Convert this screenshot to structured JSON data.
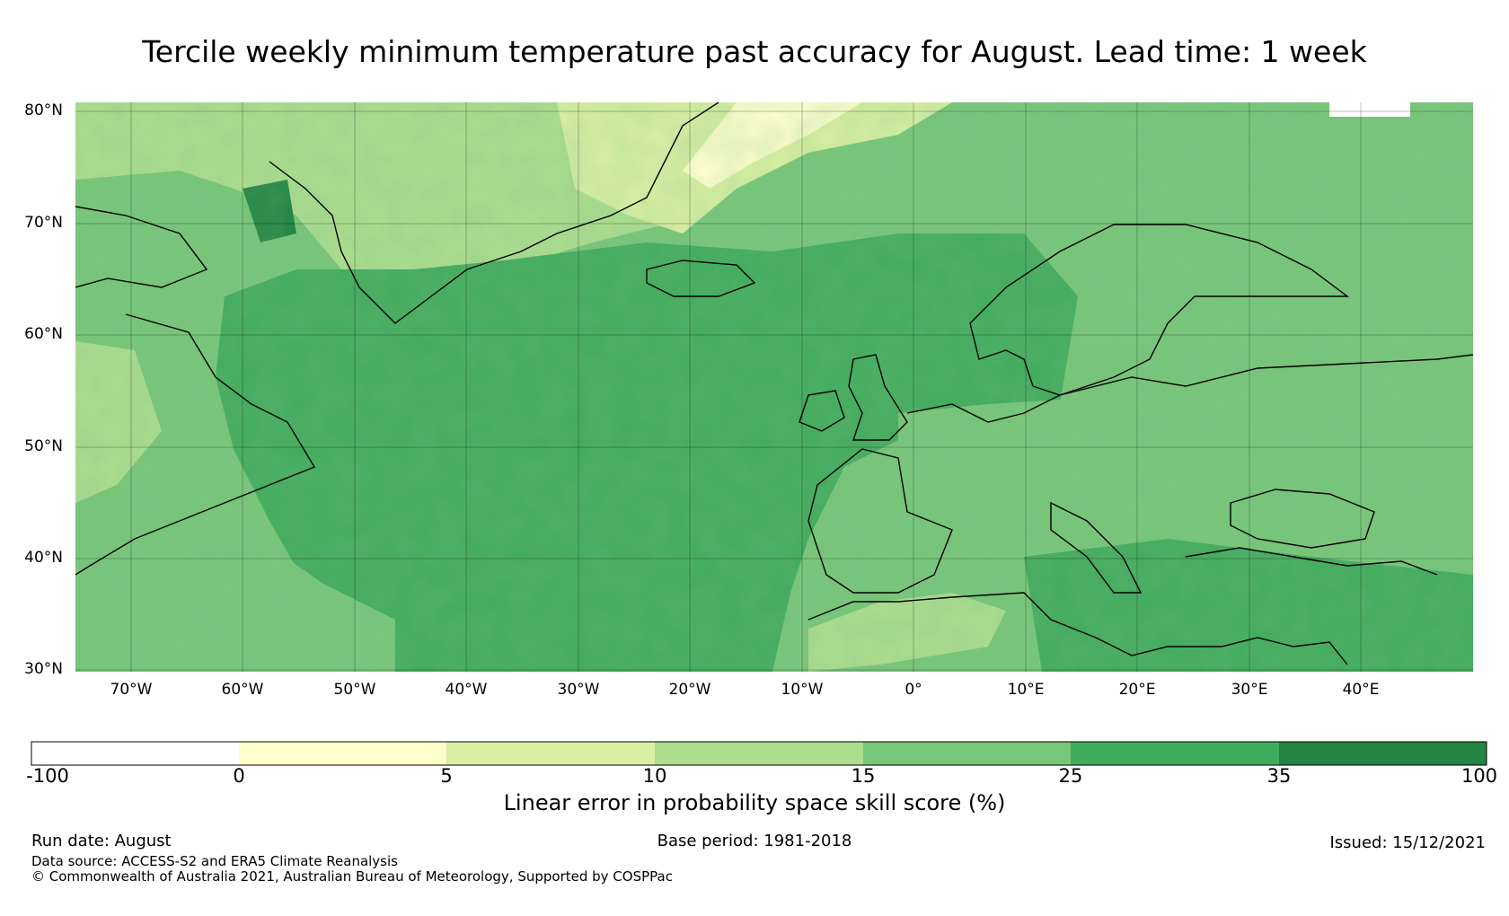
{
  "title": "Tercile weekly minimum temperature past accuracy for August. Lead time: 1 week",
  "map": {
    "lat_labels": [
      "80°N",
      "70°N",
      "60°N",
      "50°N",
      "40°N",
      "30°N"
    ],
    "lon_labels": [
      "70°W",
      "60°W",
      "50°W",
      "40°W",
      "30°W",
      "20°W",
      "10°W",
      "0°",
      "10°E",
      "20°E",
      "30°E",
      "40°E"
    ],
    "extent": {
      "lon_min": -75,
      "lon_max": 50,
      "lat_min": 30,
      "lat_max": 81
    }
  },
  "colorbar": {
    "label": "Linear error in probability space skill score (%)",
    "ticks": [
      "-100",
      "0",
      "5",
      "10",
      "15",
      "25",
      "35",
      "100"
    ],
    "colors": [
      "#ffffff",
      "#ffffcc",
      "#d9f0a3",
      "#addd8e",
      "#78c679",
      "#41ab5d",
      "#238443"
    ]
  },
  "footer": {
    "run_date": "Run date: August",
    "base_period": "Base period: 1981-2018",
    "issued": "Issued: 15/12/2021",
    "data_source": "Data source: ACCESS-S2 and ERA5 Climate Reanalysis",
    "copyright": "© Commonwealth of Australia 2021, Australian Bureau of Meteorology, Supported by COSPPac"
  }
}
